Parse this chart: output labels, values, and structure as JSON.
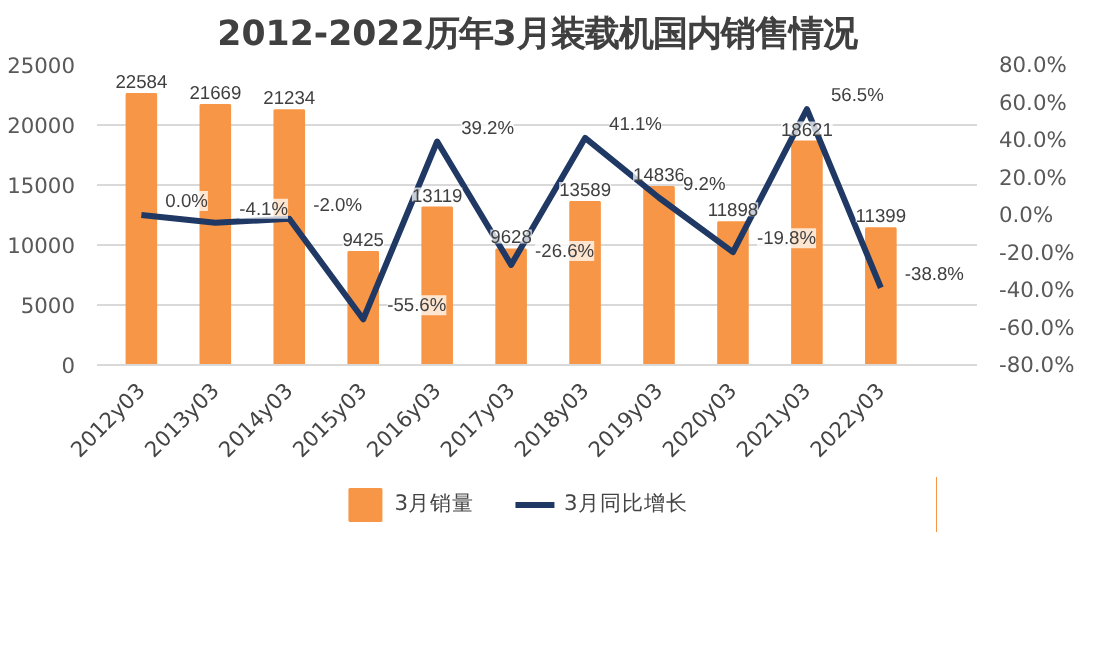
{
  "chart_data": {
    "type": "bar",
    "title": "2012-2022历年3月装载机国内销售情况",
    "categories": [
      "2012y03",
      "2013y03",
      "2014y03",
      "2015y03",
      "2016y03",
      "2017y03",
      "2018y03",
      "2019y03",
      "2020y03",
      "2021y03",
      "2022y03"
    ],
    "series": [
      {
        "name": "3月销量",
        "color": "#f79646",
        "values": [
          22584,
          21669,
          21234,
          9425,
          13119,
          9628,
          13589,
          14836,
          11898,
          18621,
          11399
        ],
        "value_labels": [
          "22584",
          "21669",
          "21234",
          "9425",
          "13119",
          "9628",
          "13589",
          "14836",
          "11898",
          "18621",
          "11399"
        ]
      },
      {
        "name": "3月同比增长",
        "type": "line",
        "axis": "y2",
        "color": "#1f3864",
        "values": [
          0.0,
          -4.1,
          -2.0,
          -55.6,
          39.2,
          -26.6,
          41.1,
          9.2,
          -19.8,
          56.5,
          -38.8
        ],
        "value_labels": [
          "0.0%",
          "-4.1%",
          "-2.0%",
          "-55.6%",
          "39.2%",
          "-26.6%",
          "41.1%",
          "9.2%",
          "-19.8%",
          "56.5%",
          "-38.8%"
        ]
      }
    ],
    "ylim": [
      0,
      25000
    ],
    "yticks": [
      0,
      5000,
      10000,
      15000,
      20000,
      25000
    ],
    "y2lim": [
      -80,
      80
    ],
    "y2ticks": [
      {
        "value": -80,
        "label": "-80.0%"
      },
      {
        "value": -60,
        "label": "-60.0%"
      },
      {
        "value": -40,
        "label": "-40.0%"
      },
      {
        "value": -20,
        "label": "-20.0%"
      },
      {
        "value": 0,
        "label": "0.0%"
      },
      {
        "value": 20,
        "label": "20.0%"
      },
      {
        "value": 40,
        "label": "40.0%"
      },
      {
        "value": 60,
        "label": "60.0%"
      },
      {
        "value": 80,
        "label": "80.0%"
      }
    ],
    "grid": "y",
    "legend": "bottom"
  }
}
